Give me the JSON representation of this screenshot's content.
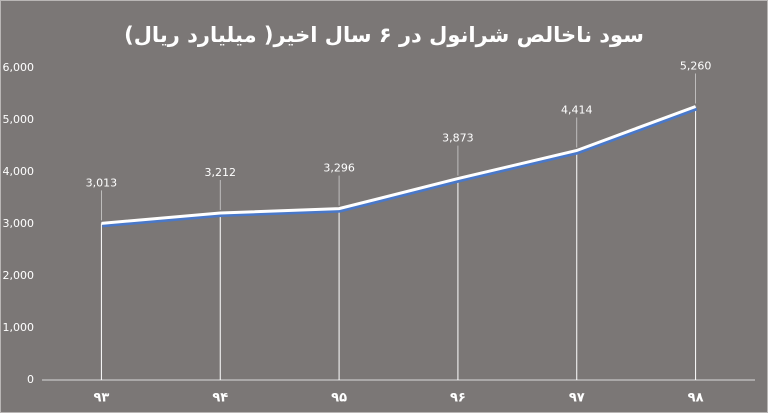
{
  "chart_data": {
    "type": "line",
    "title": "سود ناخالص شرانول در ۶ سال اخیر( میلیارد ریال)",
    "categories": [
      "۹۳",
      "۹۴",
      "۹۵",
      "۹۶",
      "۹۷",
      "۹۸"
    ],
    "values": [
      3013,
      3212,
      3296,
      3873,
      4414,
      5260
    ],
    "value_labels": [
      "3,013",
      "3,212",
      "3,296",
      "3,873",
      "4,414",
      "5,260"
    ],
    "color": "#ffffff",
    "ylim": [
      0,
      6000
    ],
    "yticks": [
      0,
      {
        "value": 1000,
        "label": "1,000"
      },
      {
        "value": 2000,
        "label": "2,000"
      },
      {
        "value": 3000,
        "label": "3,000"
      },
      {
        "value": 4000,
        "label": "4,000"
      },
      {
        "value": 5000,
        "label": "5,000"
      },
      {
        "value": 6000,
        "label": "6,000"
      }
    ]
  }
}
